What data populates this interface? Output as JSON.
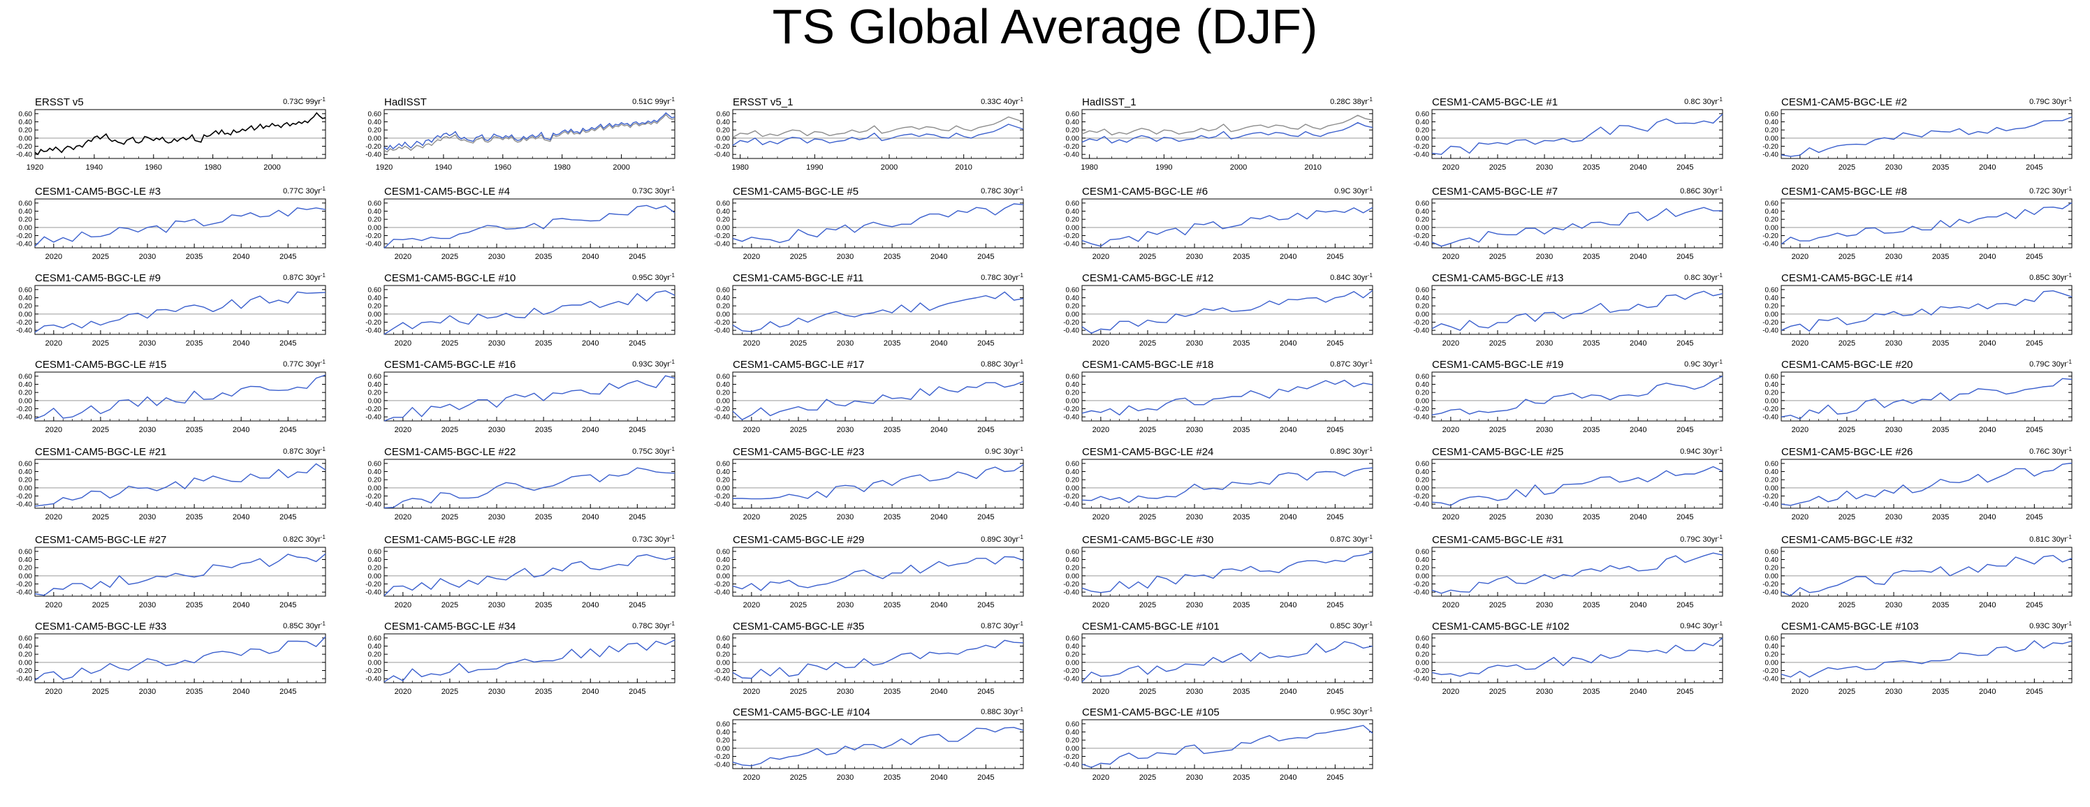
{
  "title": "TS Global Average (DJF)",
  "colors": {
    "model_line": "#3a5fcd",
    "obs_line": "#000000",
    "ref_line": "#8c8c8c",
    "zero_line": "#9a9a9a"
  },
  "trend_unit_sup": "-1",
  "chart_data": [
    {
      "type": "line",
      "label": "ERSST v5",
      "trend": "0.73C 99yr",
      "xlim": [
        1920,
        2018
      ],
      "xticks": [
        1920,
        1940,
        1960,
        1980,
        2000
      ],
      "yticks": [
        "0.60",
        "0.40",
        "0.20",
        "0.00",
        "-0.20",
        "-0.40"
      ],
      "ylim": [
        -0.5,
        0.7
      ],
      "series": [
        {
          "color": "#000000",
          "values": [
            -0.35,
            -0.4,
            -0.28,
            -0.33,
            -0.32,
            -0.25,
            -0.3,
            -0.22,
            -0.28,
            -0.35,
            -0.26,
            -0.2,
            -0.22,
            -0.28,
            -0.2,
            -0.18,
            -0.22,
            -0.12,
            -0.05,
            -0.08,
            0.02,
            0.05,
            -0.02,
            0.04,
            0.1,
            -0.02,
            -0.08,
            -0.05,
            -0.1,
            -0.12,
            -0.15,
            -0.05,
            -0.02,
            0.02,
            -0.1,
            -0.12,
            -0.08,
            0.04,
            0.02,
            -0.02,
            -0.06,
            0.0,
            -0.04,
            0.02,
            -0.08,
            -0.12,
            -0.1,
            -0.02,
            -0.08,
            -0.02,
            0.02,
            -0.04,
            0.0,
            0.08,
            -0.06,
            -0.08,
            -0.1,
            0.08,
            0.04,
            0.06,
            0.12,
            0.18,
            0.1,
            0.2,
            0.1,
            0.12,
            0.08,
            0.2,
            0.14,
            0.16,
            0.22,
            0.18,
            0.24,
            0.3,
            0.2,
            0.26,
            0.34,
            0.24,
            0.3,
            0.28,
            0.36,
            0.3,
            0.32,
            0.26,
            0.34,
            0.38,
            0.3,
            0.36,
            0.34,
            0.4,
            0.36,
            0.42,
            0.38,
            0.46,
            0.52,
            0.62,
            0.54,
            0.48,
            0.5
          ]
        }
      ]
    },
    {
      "type": "line",
      "label": "HadISST",
      "trend": "0.51C 99yr",
      "xlim": [
        1920,
        2018
      ],
      "xticks": [
        1920,
        1940,
        1960,
        1980,
        2000
      ],
      "yticks": [
        "0.60",
        "0.40",
        "0.20",
        "0.00",
        "-0.20",
        "-0.40"
      ],
      "ylim": [
        -0.5,
        0.7
      ],
      "series": [
        {
          "color": "#8c8c8c",
          "values": [
            -0.3,
            -0.34,
            -0.26,
            -0.3,
            -0.28,
            -0.22,
            -0.26,
            -0.2,
            -0.24,
            -0.3,
            -0.24,
            -0.18,
            -0.2,
            -0.24,
            -0.16,
            -0.14,
            -0.18,
            -0.1,
            -0.04,
            -0.06,
            0.02,
            0.04,
            0.0,
            0.04,
            0.08,
            -0.02,
            -0.06,
            -0.04,
            -0.08,
            -0.1,
            -0.12,
            -0.04,
            -0.02,
            0.02,
            -0.08,
            -0.1,
            -0.06,
            0.04,
            0.02,
            0.0,
            -0.04,
            0.02,
            -0.02,
            0.04,
            -0.06,
            -0.1,
            -0.08,
            0.0,
            -0.06,
            0.0,
            0.04,
            -0.02,
            0.02,
            0.08,
            -0.04,
            -0.06,
            -0.08,
            0.08,
            0.04,
            0.06,
            0.12,
            0.16,
            0.1,
            0.18,
            0.1,
            0.12,
            0.1,
            0.2,
            0.14,
            0.16,
            0.22,
            0.18,
            0.24,
            0.3,
            0.2,
            0.26,
            0.32,
            0.24,
            0.3,
            0.28,
            0.34,
            0.3,
            0.32,
            0.26,
            0.34,
            0.36,
            0.3,
            0.34,
            0.34,
            0.38,
            0.34,
            0.4,
            0.36,
            0.44,
            0.5,
            0.58,
            0.5,
            0.46,
            0.48
          ]
        },
        {
          "color": "#3a5fcd",
          "values": [
            -0.22,
            -0.28,
            -0.18,
            -0.26,
            -0.2,
            -0.14,
            -0.2,
            -0.1,
            -0.18,
            -0.24,
            -0.16,
            -0.08,
            -0.12,
            -0.18,
            -0.06,
            -0.04,
            -0.1,
            0.0,
            0.06,
            0.02,
            0.1,
            0.12,
            0.06,
            0.1,
            0.16,
            0.04,
            -0.02,
            0.02,
            -0.04,
            -0.06,
            -0.08,
            0.02,
            0.04,
            0.08,
            -0.04,
            -0.06,
            0.0,
            0.1,
            0.06,
            0.04,
            0.0,
            0.06,
            0.02,
            0.08,
            -0.02,
            -0.06,
            -0.04,
            0.04,
            -0.02,
            0.04,
            0.08,
            0.02,
            0.06,
            0.14,
            0.0,
            -0.02,
            -0.04,
            0.12,
            0.08,
            0.1,
            0.16,
            0.2,
            0.14,
            0.22,
            0.14,
            0.16,
            0.12,
            0.24,
            0.18,
            0.2,
            0.26,
            0.22,
            0.28,
            0.34,
            0.24,
            0.3,
            0.36,
            0.28,
            0.34,
            0.32,
            0.38,
            0.34,
            0.36,
            0.3,
            0.38,
            0.4,
            0.34,
            0.38,
            0.36,
            0.42,
            0.38,
            0.44,
            0.4,
            0.48,
            0.54,
            0.62,
            0.56,
            0.5,
            0.52
          ]
        }
      ]
    },
    {
      "type": "line",
      "label": "ERSST v5_1",
      "trend": "0.33C 40yr",
      "xlim": [
        1979,
        2018
      ],
      "xticks": [
        1980,
        1990,
        2000,
        2010
      ],
      "yticks": [
        "0.60",
        "0.40",
        "0.20",
        "0.00",
        "-0.20",
        "-0.40"
      ],
      "ylim": [
        -0.5,
        0.7
      ],
      "series": [
        {
          "color": "#8c8c8c",
          "values": [
            0.02,
            0.12,
            0.1,
            0.18,
            0.04,
            0.1,
            0.06,
            0.14,
            0.2,
            0.18,
            0.06,
            0.16,
            0.14,
            0.06,
            0.1,
            0.12,
            0.2,
            0.14,
            0.18,
            0.3,
            0.12,
            0.16,
            0.22,
            0.26,
            0.28,
            0.22,
            0.28,
            0.26,
            0.2,
            0.18,
            0.3,
            0.22,
            0.18,
            0.26,
            0.3,
            0.34,
            0.42,
            0.52,
            0.46,
            0.4
          ]
        },
        {
          "color": "#3a5fcd",
          "values": [
            -0.18,
            -0.06,
            -0.1,
            0.0,
            -0.16,
            -0.08,
            -0.14,
            -0.04,
            0.02,
            0.0,
            -0.12,
            -0.02,
            -0.04,
            -0.12,
            -0.08,
            -0.06,
            0.02,
            -0.04,
            0.0,
            0.12,
            -0.06,
            -0.02,
            0.04,
            0.08,
            0.1,
            0.04,
            0.1,
            0.08,
            0.02,
            0.0,
            0.12,
            0.04,
            0.0,
            0.08,
            0.12,
            0.16,
            0.24,
            0.34,
            0.28,
            0.22
          ]
        }
      ]
    },
    {
      "type": "line",
      "label": "HadISST_1",
      "trend": "0.28C 38yr",
      "xlim": [
        1979,
        2018
      ],
      "xticks": [
        1980,
        1990,
        2000,
        2010
      ],
      "yticks": [
        "0.60",
        "0.40",
        "0.20",
        "0.00",
        "-0.20",
        "-0.40"
      ],
      "ylim": [
        -0.5,
        0.7
      ],
      "series": [
        {
          "color": "#8c8c8c",
          "values": [
            0.1,
            0.18,
            0.14,
            0.22,
            0.08,
            0.14,
            0.1,
            0.18,
            0.24,
            0.2,
            0.1,
            0.2,
            0.18,
            0.1,
            0.14,
            0.16,
            0.24,
            0.18,
            0.22,
            0.34,
            0.16,
            0.2,
            0.26,
            0.3,
            0.32,
            0.26,
            0.32,
            0.3,
            0.24,
            0.22,
            0.34,
            0.26,
            0.22,
            0.3,
            0.34,
            0.38,
            0.46,
            0.56,
            0.48,
            0.44
          ]
        },
        {
          "color": "#3a5fcd",
          "values": [
            -0.1,
            -0.02,
            -0.06,
            0.04,
            -0.12,
            -0.04,
            -0.1,
            0.0,
            0.06,
            0.02,
            -0.08,
            0.02,
            0.0,
            -0.08,
            -0.04,
            -0.02,
            0.06,
            0.0,
            0.04,
            0.16,
            -0.02,
            0.02,
            0.08,
            0.12,
            0.14,
            0.08,
            0.14,
            0.12,
            0.06,
            0.04,
            0.16,
            0.08,
            0.04,
            0.12,
            0.16,
            0.2,
            0.28,
            0.38,
            0.3,
            0.26
          ]
        }
      ]
    },
    {
      "type": "line",
      "label": "CESM1-CAM5-BGC-LE #1",
      "trend": "0.8C 30yr",
      "series_seed": 1
    },
    {
      "type": "line",
      "label": "CESM1-CAM5-BGC-LE #2",
      "trend": "0.79C 30yr",
      "series_seed": 2
    },
    {
      "type": "line",
      "label": "CESM1-CAM5-BGC-LE #3",
      "trend": "0.77C 30yr",
      "series_seed": 3
    },
    {
      "type": "line",
      "label": "CESM1-CAM5-BGC-LE #4",
      "trend": "0.73C 30yr",
      "series_seed": 4
    },
    {
      "type": "line",
      "label": "CESM1-CAM5-BGC-LE #5",
      "trend": "0.78C 30yr",
      "series_seed": 5
    },
    {
      "type": "line",
      "label": "CESM1-CAM5-BGC-LE #6",
      "trend": "0.9C 30yr",
      "series_seed": 6
    },
    {
      "type": "line",
      "label": "CESM1-CAM5-BGC-LE #7",
      "trend": "0.86C 30yr",
      "series_seed": 7
    },
    {
      "type": "line",
      "label": "CESM1-CAM5-BGC-LE #8",
      "trend": "0.72C 30yr",
      "series_seed": 8
    },
    {
      "type": "line",
      "label": "CESM1-CAM5-BGC-LE #9",
      "trend": "0.87C 30yr",
      "series_seed": 9
    },
    {
      "type": "line",
      "label": "CESM1-CAM5-BGC-LE #10",
      "trend": "0.95C 30yr",
      "series_seed": 10
    },
    {
      "type": "line",
      "label": "CESM1-CAM5-BGC-LE #11",
      "trend": "0.78C 30yr",
      "series_seed": 11
    },
    {
      "type": "line",
      "label": "CESM1-CAM5-BGC-LE #12",
      "trend": "0.84C 30yr",
      "series_seed": 12
    },
    {
      "type": "line",
      "label": "CESM1-CAM5-BGC-LE #13",
      "trend": "0.8C 30yr",
      "series_seed": 13
    },
    {
      "type": "line",
      "label": "CESM1-CAM5-BGC-LE #14",
      "trend": "0.85C 30yr",
      "series_seed": 14
    },
    {
      "type": "line",
      "label": "CESM1-CAM5-BGC-LE #15",
      "trend": "0.77C 30yr",
      "series_seed": 15
    },
    {
      "type": "line",
      "label": "CESM1-CAM5-BGC-LE #16",
      "trend": "0.93C 30yr",
      "series_seed": 16
    },
    {
      "type": "line",
      "label": "CESM1-CAM5-BGC-LE #17",
      "trend": "0.88C 30yr",
      "series_seed": 17
    },
    {
      "type": "line",
      "label": "CESM1-CAM5-BGC-LE #18",
      "trend": "0.87C 30yr",
      "series_seed": 18
    },
    {
      "type": "line",
      "label": "CESM1-CAM5-BGC-LE #19",
      "trend": "0.9C 30yr",
      "series_seed": 19
    },
    {
      "type": "line",
      "label": "CESM1-CAM5-BGC-LE #20",
      "trend": "0.79C 30yr",
      "series_seed": 20
    },
    {
      "type": "line",
      "label": "CESM1-CAM5-BGC-LE #21",
      "trend": "0.87C 30yr",
      "series_seed": 21
    },
    {
      "type": "line",
      "label": "CESM1-CAM5-BGC-LE #22",
      "trend": "0.75C 30yr",
      "series_seed": 22
    },
    {
      "type": "line",
      "label": "CESM1-CAM5-BGC-LE #23",
      "trend": "0.9C 30yr",
      "series_seed": 23
    },
    {
      "type": "line",
      "label": "CESM1-CAM5-BGC-LE #24",
      "trend": "0.89C 30yr",
      "series_seed": 24
    },
    {
      "type": "line",
      "label": "CESM1-CAM5-BGC-LE #25",
      "trend": "0.94C 30yr",
      "series_seed": 25
    },
    {
      "type": "line",
      "label": "CESM1-CAM5-BGC-LE #26",
      "trend": "0.76C 30yr",
      "series_seed": 26
    },
    {
      "type": "line",
      "label": "CESM1-CAM5-BGC-LE #27",
      "trend": "0.82C 30yr",
      "series_seed": 27
    },
    {
      "type": "line",
      "label": "CESM1-CAM5-BGC-LE #28",
      "trend": "0.73C 30yr",
      "series_seed": 28
    },
    {
      "type": "line",
      "label": "CESM1-CAM5-BGC-LE #29",
      "trend": "0.89C 30yr",
      "series_seed": 29
    },
    {
      "type": "line",
      "label": "CESM1-CAM5-BGC-LE #30",
      "trend": "0.87C 30yr",
      "series_seed": 30
    },
    {
      "type": "line",
      "label": "CESM1-CAM5-BGC-LE #31",
      "trend": "0.79C 30yr",
      "series_seed": 31
    },
    {
      "type": "line",
      "label": "CESM1-CAM5-BGC-LE #32",
      "trend": "0.81C 30yr",
      "series_seed": 32
    },
    {
      "type": "line",
      "label": "CESM1-CAM5-BGC-LE #33",
      "trend": "0.85C 30yr",
      "series_seed": 33
    },
    {
      "type": "line",
      "label": "CESM1-CAM5-BGC-LE #34",
      "trend": "0.78C 30yr",
      "series_seed": 34
    },
    {
      "type": "line",
      "label": "CESM1-CAM5-BGC-LE #35",
      "trend": "0.87C 30yr",
      "series_seed": 35
    },
    {
      "type": "line",
      "label": "CESM1-CAM5-BGC-LE #101",
      "trend": "0.85C 30yr",
      "series_seed": 101
    },
    {
      "type": "line",
      "label": "CESM1-CAM5-BGC-LE #102",
      "trend": "0.94C 30yr",
      "series_seed": 102
    },
    {
      "type": "line",
      "label": "CESM1-CAM5-BGC-LE #103",
      "trend": "0.93C 30yr",
      "series_seed": 103
    },
    {
      "type": "line",
      "label": "CESM1-CAM5-BGC-LE #104",
      "trend": "0.88C 30yr",
      "series_seed": 104
    },
    {
      "type": "line",
      "label": "CESM1-CAM5-BGC-LE #105",
      "trend": "0.95C 30yr",
      "series_seed": 105
    }
  ],
  "model_axes": {
    "xlim": [
      2018,
      2049
    ],
    "xticks": [
      2020,
      2025,
      2030,
      2035,
      2040,
      2045
    ],
    "yticks": [
      "0.60",
      "0.40",
      "0.20",
      "0.00",
      "-0.20",
      "-0.40"
    ],
    "ylim": [
      -0.5,
      0.7
    ]
  }
}
